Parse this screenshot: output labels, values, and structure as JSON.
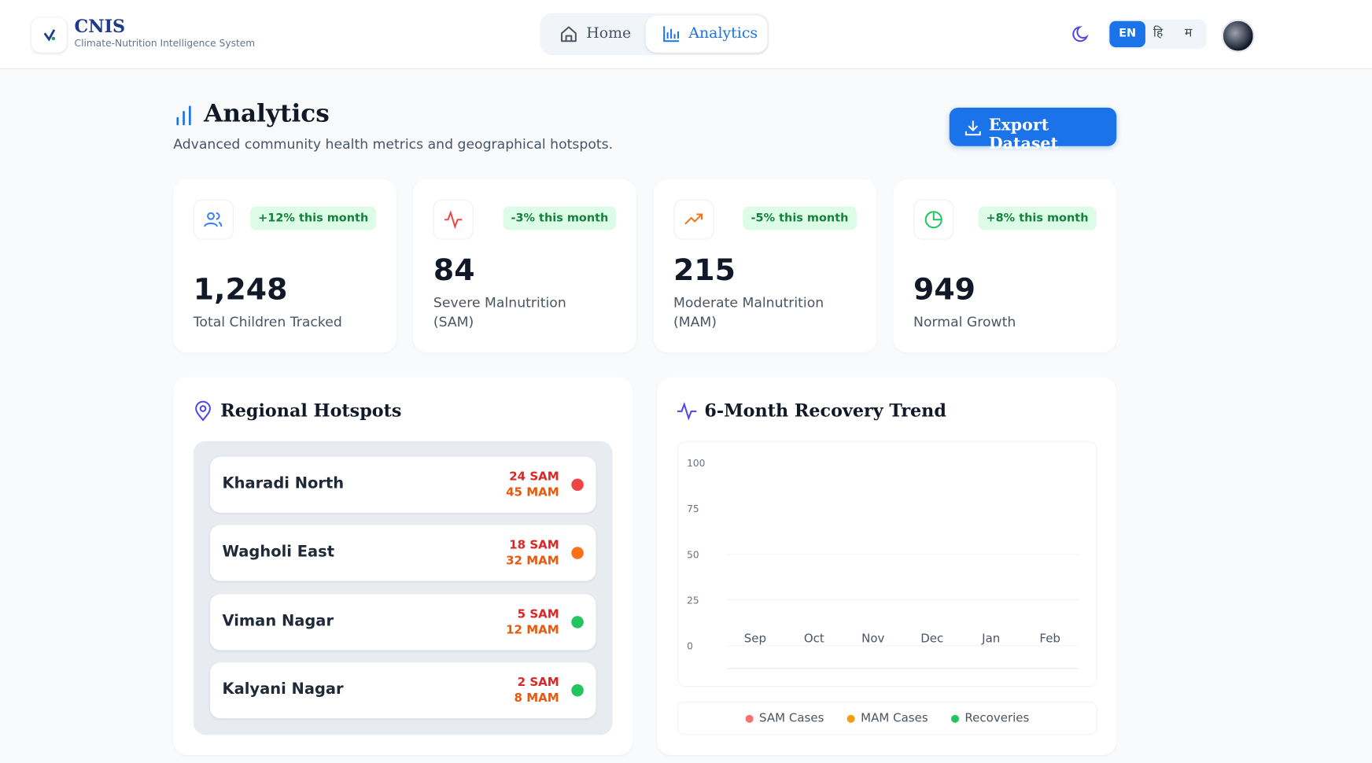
{
  "header": {
    "brand": "CNIS",
    "tagline": "Climate-Nutrition Intelligence System",
    "nav": [
      "Home",
      "Analytics"
    ],
    "languages": [
      "EN",
      "हि",
      "म"
    ]
  },
  "page": {
    "title": "Analytics",
    "subtitle": "Advanced community health metrics and geographical hotspots.",
    "export_button": "Export Dataset"
  },
  "stats": [
    {
      "value": "1,248",
      "label": "Total Children Tracked",
      "change": "+12% this month",
      "icon_color": "#3b82f6"
    },
    {
      "value": "84",
      "label": "Severe Malnutrition (SAM)",
      "change": "-3% this month",
      "icon_color": "#ef4444"
    },
    {
      "value": "215",
      "label": "Moderate Malnutrition (MAM)",
      "change": "-5% this month",
      "icon_color": "#f97316"
    },
    {
      "value": "949",
      "label": "Normal Growth",
      "change": "+8% this month",
      "icon_color": "#22c55e"
    }
  ],
  "hotspots": {
    "title": "Regional Hotspots",
    "items": [
      {
        "name": "Kharadi North",
        "sam": "24 SAM",
        "mam": "45 MAM",
        "status_color": "#ef4444"
      },
      {
        "name": "Wagholi East",
        "sam": "18 SAM",
        "mam": "32 MAM",
        "status_color": "#f97316"
      },
      {
        "name": "Viman Nagar",
        "sam": "5 SAM",
        "mam": "12 MAM",
        "status_color": "#22c55e"
      },
      {
        "name": "Kalyani Nagar",
        "sam": "2 SAM",
        "mam": "8 MAM",
        "status_color": "#22c55e"
      }
    ]
  },
  "trend_chart": {
    "title": "6-Month Recovery Trend",
    "categories": [
      "Sep",
      "Oct",
      "Nov",
      "Dec",
      "Jan",
      "Feb"
    ],
    "ylim": [
      0,
      100
    ],
    "yticks": [
      0,
      25,
      50,
      75,
      100
    ],
    "series": [
      {
        "name": "SAM Cases",
        "color": "#f87171"
      },
      {
        "name": "MAM Cases",
        "color": "#f59e0b"
      },
      {
        "name": "Recoveries",
        "color": "#22c55e"
      }
    ]
  }
}
